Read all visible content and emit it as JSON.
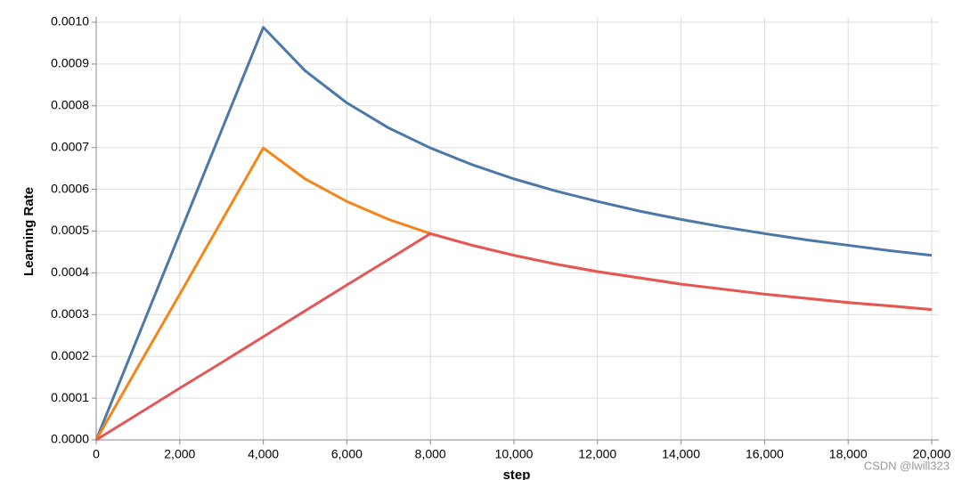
{
  "chart_data": {
    "type": "line",
    "x_label": "step",
    "y_label": "Learning Rate",
    "x": [
      0,
      1000,
      2000,
      3000,
      4000,
      5000,
      6000,
      7000,
      8000,
      9000,
      10000,
      11000,
      12000,
      13000,
      14000,
      15000,
      16000,
      17000,
      18000,
      19000,
      20000
    ],
    "series": [
      {
        "color": "#4c78a8",
        "values": [
          0,
          0.000247,
          0.000494,
          0.000741,
          0.000988,
          0.000884,
          0.000807,
          0.000747,
          0.000699,
          0.000659,
          0.000625,
          0.000596,
          0.000571,
          0.000548,
          0.000528,
          0.00051,
          0.000494,
          0.000479,
          0.000466,
          0.000453,
          0.000442
        ]
      },
      {
        "color": "#f58518",
        "values": [
          0,
          0.000175,
          0.000349,
          0.000524,
          0.000699,
          0.000625,
          0.000571,
          0.000528,
          0.000494,
          0.000466,
          0.000442,
          0.000421,
          0.000403,
          0.000388,
          0.000373,
          0.000361,
          0.000349,
          0.000339,
          0.000329,
          0.000321,
          0.000312
        ]
      },
      {
        "color": "#e45756",
        "values": [
          0,
          6.18e-05,
          0.000124,
          0.000185,
          0.000247,
          0.000309,
          0.000371,
          0.000432,
          0.000494,
          0.000466,
          0.000442,
          0.000421,
          0.000403,
          0.000388,
          0.000373,
          0.000361,
          0.000349,
          0.000339,
          0.000329,
          0.000321,
          0.000312
        ]
      }
    ],
    "xlim": [
      0,
      20000
    ],
    "xticks": [
      0,
      {
        "value": 2000,
        "label": "2,000"
      },
      {
        "value": 4000,
        "label": "4,000"
      },
      {
        "value": 6000,
        "label": "6,000"
      },
      {
        "value": 8000,
        "label": "8,000"
      },
      {
        "value": 10000,
        "label": "10,000"
      },
      {
        "value": 12000,
        "label": "12,000"
      },
      {
        "value": 14000,
        "label": "14,000"
      },
      {
        "value": 16000,
        "label": "16,000"
      },
      {
        "value": 18000,
        "label": "18,000"
      },
      {
        "value": 20000,
        "label": "20,000"
      }
    ],
    "ylim": [
      0,
      0.001
    ],
    "yticks": [
      {
        "value": 0,
        "label": "0.0000"
      },
      {
        "value": 0.0001,
        "label": "0.0001"
      },
      {
        "value": 0.0002,
        "label": "0.0002"
      },
      {
        "value": 0.0003,
        "label": "0.0003"
      },
      {
        "value": 0.0004,
        "label": "0.0004"
      },
      {
        "value": 0.0005,
        "label": "0.0005"
      },
      {
        "value": 0.0006,
        "label": "0.0006"
      },
      {
        "value": 0.0007,
        "label": "0.0007"
      },
      {
        "value": 0.0008,
        "label": "0.0008"
      },
      {
        "value": 0.0009,
        "label": "0.0009"
      },
      {
        "value": 0.001,
        "label": "0.0010"
      }
    ],
    "grid": true
  },
  "watermark": "CSDN @lwill323"
}
